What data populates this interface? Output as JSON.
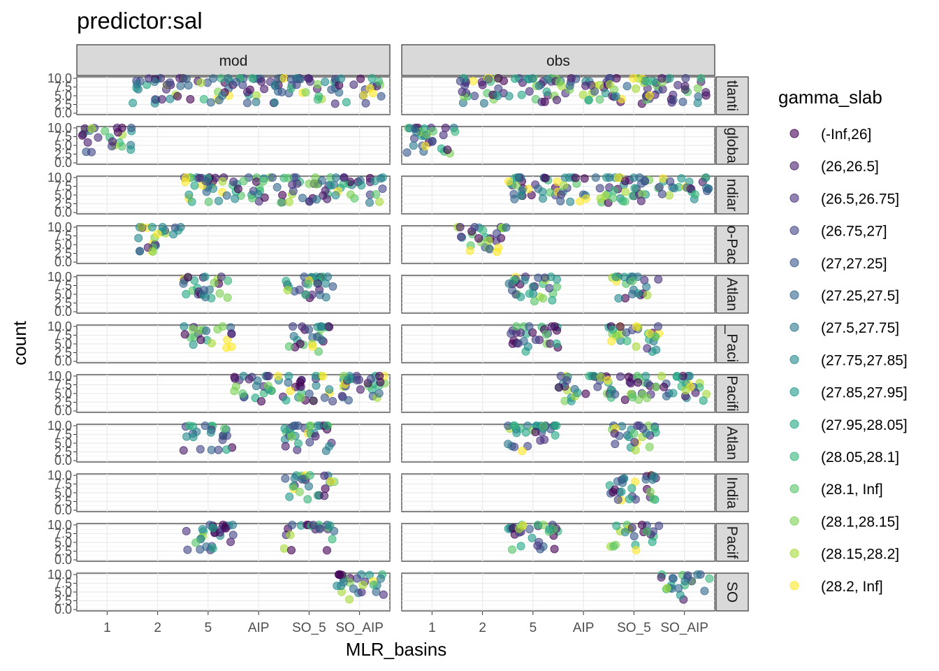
{
  "chart_data": {
    "type": "scatter",
    "title": "predictor:sal",
    "xlabel": "MLR_basins",
    "ylabel": "count",
    "x_categories": [
      "1",
      "2",
      "5",
      "AIP",
      "SO_5",
      "SO_AIP"
    ],
    "y_ticks": [
      "0.0",
      "2.5",
      "5.0",
      "7.5",
      "10.0"
    ],
    "ylim": [
      0,
      10
    ],
    "col_facets": [
      "mod",
      "obs"
    ],
    "row_facets": [
      "tlanti",
      "globa",
      "ndiar",
      "o-Pac",
      "Atlan",
      "_Paci",
      "Pacifi",
      "Atlan",
      "India",
      "Pacif",
      "SO"
    ],
    "legend": {
      "title": "gamma_slab",
      "placement": "right",
      "items": [
        {
          "label": "(-Inf,26]",
          "color": "#440154"
        },
        {
          "label": "(26,26.5]",
          "color": "#481A6C"
        },
        {
          "label": "(26.5,26.75]",
          "color": "#472F7D"
        },
        {
          "label": "(26.75,27]",
          "color": "#414487"
        },
        {
          "label": "(27,27.25]",
          "color": "#39568C"
        },
        {
          "label": "(27.25,27.5]",
          "color": "#31688E"
        },
        {
          "label": "(27.5,27.75]",
          "color": "#2A788E"
        },
        {
          "label": "(27.75,27.85]",
          "color": "#23888E"
        },
        {
          "label": "(27.85,27.95]",
          "color": "#1F988B"
        },
        {
          "label": "(27.95,28.05]",
          "color": "#22A884"
        },
        {
          "label": "(28.05,28.1]",
          "color": "#35B779"
        },
        {
          "label": "(28.1, Inf]",
          "color": "#54C568"
        },
        {
          "label": "(28.1,28.15]",
          "color": "#7AD151"
        },
        {
          "label": "(28.15,28.2]",
          "color": "#A5DB36"
        },
        {
          "label": "(28.2, Inf]",
          "color": "#FDE725"
        }
      ]
    },
    "presence": {
      "mod": [
        [
          "2",
          "5",
          "AIP",
          "SO_5",
          "SO_AIP"
        ],
        [
          "1"
        ],
        [
          "5",
          "AIP",
          "SO_5",
          "SO_AIP"
        ],
        [
          "2"
        ],
        [
          "5",
          "SO_5"
        ],
        [
          "5",
          "SO_5"
        ],
        [
          "AIP",
          "SO_5",
          "SO_AIP"
        ],
        [
          "5",
          "SO_5"
        ],
        [
          "SO_5"
        ],
        [
          "5",
          "SO_5"
        ],
        [
          "SO_AIP"
        ]
      ],
      "obs": [
        [
          "2",
          "5",
          "AIP",
          "SO_5",
          "SO_AIP"
        ],
        [
          "1"
        ],
        [
          "5",
          "AIP",
          "SO_5",
          "SO_AIP"
        ],
        [
          "2"
        ],
        [
          "5",
          "SO_5"
        ],
        [
          "5",
          "SO_5"
        ],
        [
          "AIP",
          "SO_5",
          "SO_AIP"
        ],
        [
          "5",
          "SO_5"
        ],
        [
          "SO_5"
        ],
        [
          "5",
          "SO_5"
        ],
        [
          "SO_AIP"
        ]
      ]
    }
  }
}
